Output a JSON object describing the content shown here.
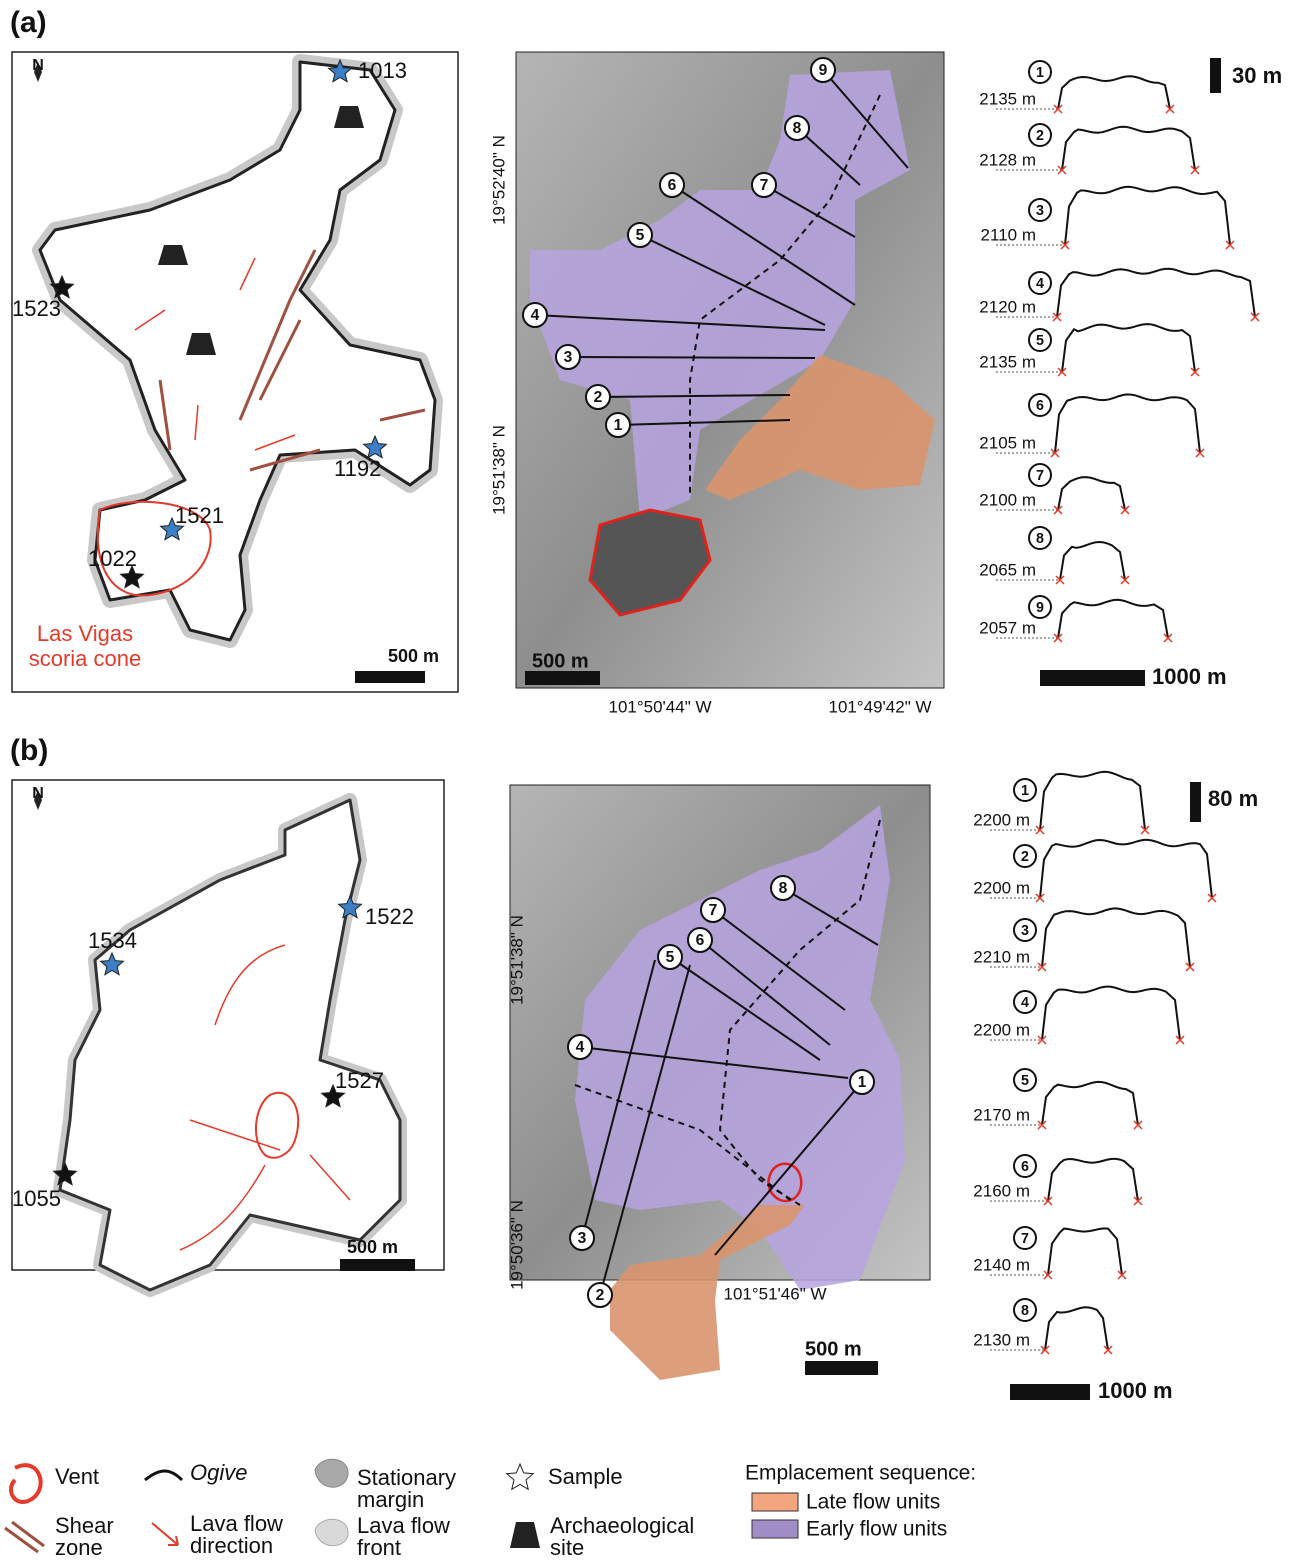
{
  "panels": [
    {
      "label": "(a)",
      "map": {
        "north": "N",
        "samples": [
          {
            "id": "1013",
            "color": "#3b7fc7"
          },
          {
            "id": "1523",
            "color": "#111111"
          },
          {
            "id": "1192",
            "color": "#3b7fc7"
          },
          {
            "id": "1521",
            "color": "#3b7fc7"
          },
          {
            "id": "1022",
            "color": "#111111"
          }
        ],
        "vent_label": [
          "Las Vigas",
          "scoria cone"
        ],
        "scale": "500 m"
      },
      "dem": {
        "profiles": [
          "1",
          "2",
          "3",
          "4",
          "5",
          "6",
          "7",
          "8",
          "9"
        ],
        "latitudes": [
          "19°52'40\" N",
          "19°51'38\" N"
        ],
        "longitudes": [
          "101°50'44\" W",
          "101°49'42\" W"
        ],
        "scale": "500 m"
      },
      "profiles": {
        "vertical_scale": "30 m",
        "horizontal_scale": "1000 m",
        "rows": [
          {
            "number": "1",
            "elevation": "2135 m"
          },
          {
            "number": "2",
            "elevation": "2128 m"
          },
          {
            "number": "3",
            "elevation": "2110 m"
          },
          {
            "number": "4",
            "elevation": "2120 m"
          },
          {
            "number": "5",
            "elevation": "2135 m"
          },
          {
            "number": "6",
            "elevation": "2105 m"
          },
          {
            "number": "7",
            "elevation": "2100 m"
          },
          {
            "number": "8",
            "elevation": "2065 m"
          },
          {
            "number": "9",
            "elevation": "2057 m"
          }
        ]
      }
    },
    {
      "label": "(b)",
      "map": {
        "north": "N",
        "samples": [
          {
            "id": "1522",
            "color": "#3b7fc7"
          },
          {
            "id": "1534",
            "color": "#3b7fc7"
          },
          {
            "id": "1527",
            "color": "#111111"
          },
          {
            "id": "1055",
            "color": "#111111"
          }
        ],
        "scale": "500 m"
      },
      "dem": {
        "profiles": [
          "1",
          "2",
          "3",
          "4",
          "5",
          "6",
          "7",
          "8"
        ],
        "latitudes": [
          "19°51'38\" N",
          "19°50'36\" N"
        ],
        "longitudes": [
          "101°51'46\" W"
        ],
        "scale": "500 m"
      },
      "profiles": {
        "vertical_scale": "80 m",
        "horizontal_scale": "1000 m",
        "rows": [
          {
            "number": "1",
            "elevation": "2200 m"
          },
          {
            "number": "2",
            "elevation": "2200 m"
          },
          {
            "number": "3",
            "elevation": "2210 m"
          },
          {
            "number": "4",
            "elevation": "2200 m"
          },
          {
            "number": "5",
            "elevation": "2170 m"
          },
          {
            "number": "6",
            "elevation": "2160 m"
          },
          {
            "number": "7",
            "elevation": "2140 m"
          },
          {
            "number": "8",
            "elevation": "2130 m"
          }
        ]
      }
    }
  ],
  "legend": {
    "items": [
      {
        "lines": [
          "Vent"
        ]
      },
      {
        "lines": [
          "Shear",
          "zone"
        ]
      },
      {
        "lines": [
          "Ogive"
        ]
      },
      {
        "lines": [
          "Lava flow",
          "direction"
        ]
      },
      {
        "lines": [
          "Stationary",
          "margin"
        ]
      },
      {
        "lines": [
          "Lava flow",
          "front"
        ]
      },
      {
        "lines": [
          "Sample"
        ]
      },
      {
        "lines": [
          "Archaeological",
          "site"
        ]
      }
    ],
    "sequence_title": "Emplacement sequence:",
    "units": [
      {
        "name": "Late flow units",
        "color": "#f2a57f"
      },
      {
        "name": "Early flow units",
        "color": "#a08cc6"
      }
    ]
  }
}
